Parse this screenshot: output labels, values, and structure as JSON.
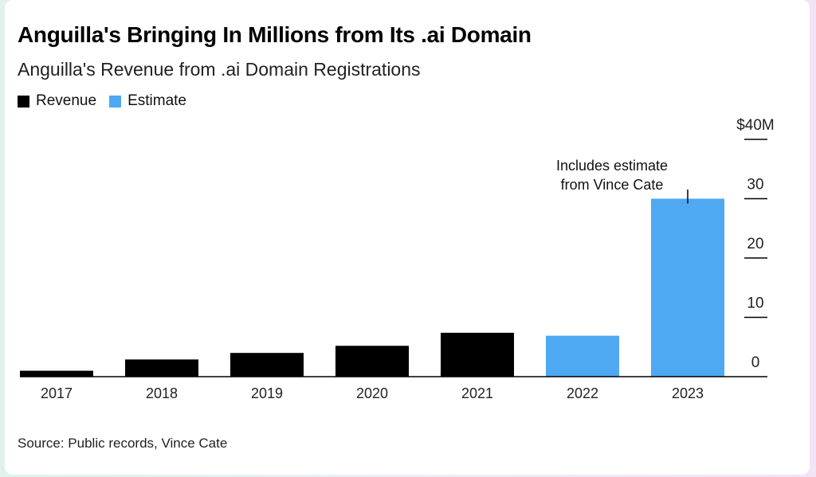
{
  "title": "Anguilla's Bringing In Millions from Its .ai Domain",
  "subtitle": "Anguilla's Revenue from .ai Domain Registrations",
  "source": "Source: Public records, Vince Cate",
  "colors": {
    "revenue": "#000000",
    "estimate": "#4ea8f2",
    "axis": "#000000"
  },
  "chart_data": {
    "type": "bar",
    "categories": [
      "2017",
      "2018",
      "2019",
      "2020",
      "2021",
      "2022",
      "2023"
    ],
    "series": [
      {
        "name": "Revenue",
        "values": [
          1.0,
          2.9,
          4.0,
          5.2,
          7.4,
          null,
          null
        ]
      },
      {
        "name": "Estimate",
        "values": [
          null,
          null,
          null,
          null,
          null,
          6.9,
          30.0
        ]
      }
    ],
    "ylim": [
      0,
      40
    ],
    "y_ticks": [
      0,
      10,
      20,
      30,
      40
    ],
    "y_tick_labels": [
      "0",
      "10",
      "20",
      "30",
      "$40M"
    ],
    "legend": [
      {
        "label": "Revenue",
        "color": "#000000"
      },
      {
        "label": "Estimate",
        "color": "#4ea8f2"
      }
    ],
    "legend_position": "top-left",
    "y_axis_position": "right",
    "grid": false,
    "annotation": {
      "category": "2023",
      "text_lines": [
        "Includes estimate",
        "from Vince Cate"
      ]
    }
  }
}
